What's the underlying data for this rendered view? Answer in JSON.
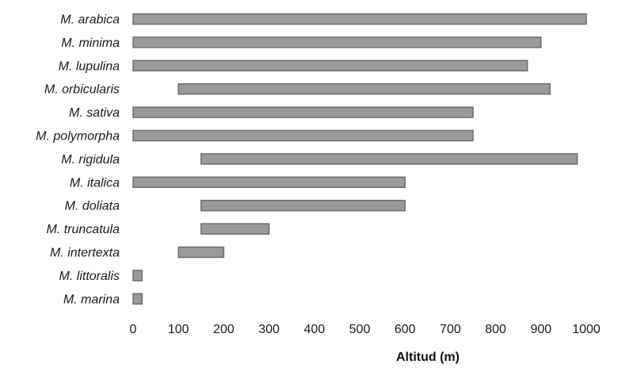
{
  "chart_data": {
    "type": "bar",
    "orientation": "horizontal",
    "title": "",
    "xlabel": "Altitud (m)",
    "ylabel": "",
    "xlim": [
      0,
      1000
    ],
    "xticks": [
      "0",
      "100",
      "200",
      "300",
      "400",
      "500",
      "600",
      "700",
      "800",
      "900",
      "1000"
    ],
    "grid": false,
    "legend": "none",
    "bar_color": "#9a9a9a",
    "bar_edge_color": "#6e6e6e",
    "categories": [
      "M. arabica",
      "M. minima",
      "M. lupulina",
      "M. orbicularis",
      "M. sativa",
      "M. polymorpha",
      "M. rigidula",
      "M. italica",
      "M. doliata",
      "M. truncatula",
      "M. intertexta",
      "M. littoralis",
      "M. marina"
    ],
    "ranges": [
      [
        0,
        1000
      ],
      [
        0,
        900
      ],
      [
        0,
        870
      ],
      [
        100,
        920
      ],
      [
        0,
        750
      ],
      [
        0,
        750
      ],
      [
        150,
        980
      ],
      [
        0,
        600
      ],
      [
        150,
        600
      ],
      [
        150,
        300
      ],
      [
        100,
        200
      ],
      [
        0,
        20
      ],
      [
        0,
        20
      ]
    ]
  }
}
